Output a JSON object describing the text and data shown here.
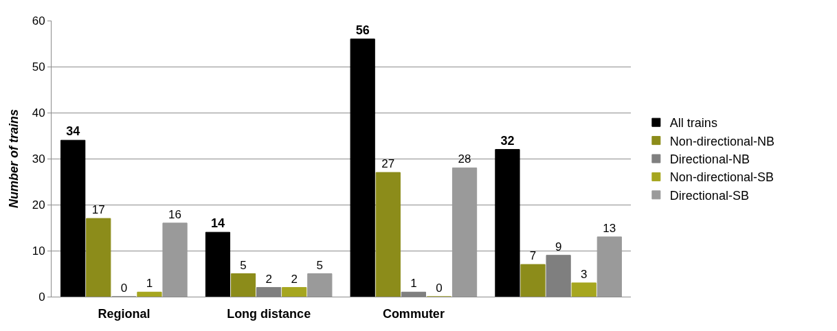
{
  "chart_data": {
    "type": "bar",
    "ylabel": "Number of trains",
    "categories": [
      "Regional",
      "Long distance",
      "Commuter",
      null
    ],
    "series": [
      {
        "name": "All trains",
        "color": "#000000",
        "values": [
          34,
          14,
          56,
          32
        ]
      },
      {
        "name": "Non-directional-NB",
        "color": "#8c8c1a",
        "values": [
          17,
          5,
          27,
          7
        ]
      },
      {
        "name": "Directional-NB",
        "color": "#7f7f7f",
        "values": [
          0,
          2,
          1,
          9
        ]
      },
      {
        "name": "Non-directional-SB",
        "color": "#a6a61f",
        "values": [
          1,
          2,
          0,
          3
        ]
      },
      {
        "name": "Directional-SB",
        "color": "#9a9a9a",
        "values": [
          16,
          5,
          28,
          13
        ]
      }
    ],
    "ylim": [
      0,
      60
    ],
    "yticks": [
      0,
      10,
      20,
      30,
      40,
      50,
      60
    ],
    "grid": "y",
    "legend": "right",
    "data_labels": true
  }
}
